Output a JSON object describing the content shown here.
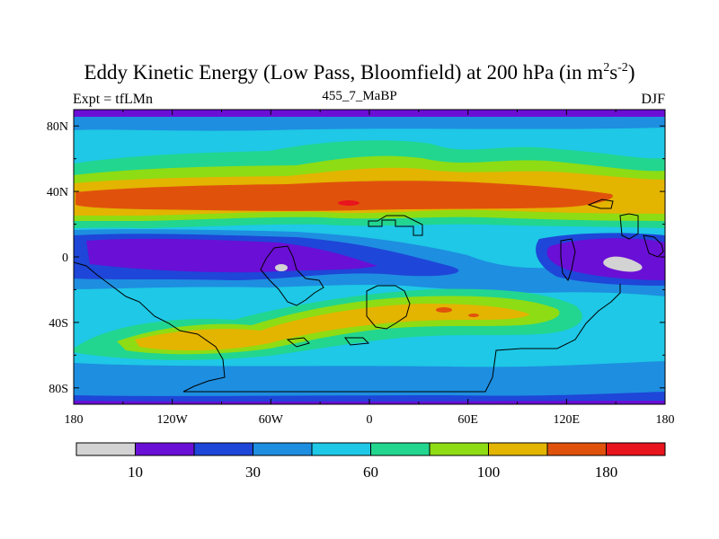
{
  "figure": {
    "title_main": "Eddy Kinetic Energy (Low Pass, Bloomfield) at 200 hPa (in m",
    "title_sup1": "2",
    "title_mid": "s",
    "title_sup2": "-2",
    "title_end": ")",
    "left_label": "Expt = tfLMn",
    "center_label": "455_7_MaBP",
    "right_label": "DJF"
  },
  "axes": {
    "y_ticks": [
      {
        "lat": 80,
        "label": "80N"
      },
      {
        "lat": 40,
        "label": "40N"
      },
      {
        "lat": 0,
        "label": "0"
      },
      {
        "lat": -40,
        "label": "40S"
      },
      {
        "lat": -80,
        "label": "80S"
      }
    ],
    "x_ticks": [
      {
        "lon": -180,
        "label": "180"
      },
      {
        "lon": -120,
        "label": "120W"
      },
      {
        "lon": -60,
        "label": "60W"
      },
      {
        "lon": 0,
        "label": "0"
      },
      {
        "lon": 60,
        "label": "60E"
      },
      {
        "lon": 120,
        "label": "120E"
      },
      {
        "lon": 180,
        "label": "180"
      }
    ],
    "lon_range": [
      -180,
      180
    ],
    "lat_range": [
      -90,
      90
    ]
  },
  "colorbar": {
    "colors": [
      "#d3d3d3",
      "#6a0fd6",
      "#1e46d8",
      "#1e8ee0",
      "#1ec8e6",
      "#22d68f",
      "#8edc14",
      "#e3b400",
      "#e0520c",
      "#e8141e"
    ],
    "labels": [
      {
        "boundary": 1,
        "label": "10"
      },
      {
        "boundary": 3,
        "label": "30"
      },
      {
        "boundary": 5,
        "label": "60"
      },
      {
        "boundary": 7,
        "label": "100"
      },
      {
        "boundary": 9,
        "label": "180"
      }
    ]
  },
  "colors": {
    "cyan": "#1ec8e6",
    "teal": "#22d68f",
    "lime": "#8edc14",
    "orange": "#e3b400",
    "red_orange": "#e0520c",
    "red": "#e8141e",
    "light_blue": "#1e8ee0",
    "blue": "#1e46d8",
    "purple": "#6a0fd6",
    "gray": "#d3d3d3"
  }
}
